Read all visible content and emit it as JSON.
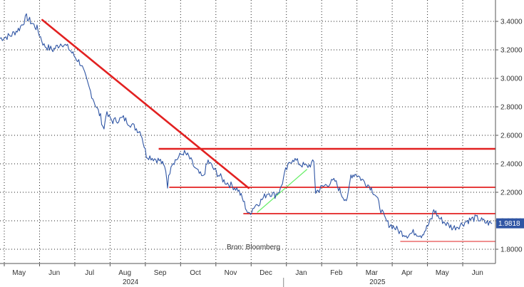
{
  "chart_data": {
    "type": "line",
    "title": "",
    "xlabel": "",
    "ylabel": "",
    "source": "Bron: Bloomberg",
    "ylim": [
      1.7,
      3.55
    ],
    "y_ticks": [
      "3.4000",
      "3.2000",
      "3.0000",
      "2.8000",
      "2.6000",
      "2.4000",
      "2.2000",
      "2.0000",
      "1.8000"
    ],
    "y_tick_values": [
      3.4,
      3.2,
      3.0,
      2.8,
      2.6,
      2.4,
      2.2,
      2.0,
      1.8
    ],
    "x_ticks": [
      "May",
      "Jun",
      "Jul",
      "Aug",
      "Sep",
      "Oct",
      "Nov",
      "Dec",
      "Jan",
      "Feb",
      "Mar",
      "Apr",
      "May",
      "Jun"
    ],
    "x_tick_positions": [
      0.5,
      1.5,
      2.5,
      3.5,
      4.5,
      5.5,
      6.5,
      7.5,
      8.5,
      9.5,
      10.5,
      11.5,
      12.5,
      13.5
    ],
    "year_labels": [
      "2024",
      "2025"
    ],
    "year_positions": [
      3.5,
      10.5
    ],
    "year_divider": 8.0,
    "x_range": [
      0,
      14.05
    ],
    "grid": true,
    "last_value": "1.9818",
    "series_color": "#2f55a4",
    "series": [
      {
        "name": "",
        "x": [
          0.0,
          0.3,
          0.55,
          0.75,
          0.9,
          1.05,
          1.25,
          1.5,
          1.75,
          1.95,
          2.1,
          2.3,
          2.5,
          2.7,
          2.85,
          2.95,
          3.0,
          3.2,
          3.5,
          3.8,
          4.0,
          4.15,
          4.35,
          4.55,
          4.7,
          4.75,
          4.85,
          5.0,
          5.2,
          5.35,
          5.55,
          5.75,
          5.9,
          6.1,
          6.35,
          6.55,
          6.75,
          6.9,
          7.05,
          7.2,
          7.4,
          7.6,
          7.8,
          7.95,
          8.1,
          8.3,
          8.5,
          8.7,
          8.9,
          8.95,
          9.1,
          9.3,
          9.5,
          9.7,
          9.85,
          9.95,
          10.1,
          10.3,
          10.5,
          10.65,
          10.8,
          10.9,
          11.0,
          11.15,
          11.35,
          11.55,
          11.75,
          11.95,
          12.1,
          12.25,
          12.3,
          12.45,
          12.65,
          12.85,
          13.05,
          13.25,
          13.5,
          13.75,
          13.95
        ],
        "y": [
          3.28,
          3.3,
          3.35,
          3.43,
          3.39,
          3.35,
          3.23,
          3.2,
          3.25,
          3.21,
          3.16,
          3.1,
          2.95,
          2.82,
          2.73,
          2.64,
          2.75,
          2.7,
          2.72,
          2.66,
          2.62,
          2.46,
          2.44,
          2.42,
          2.36,
          2.25,
          2.4,
          2.43,
          2.48,
          2.45,
          2.36,
          2.3,
          2.42,
          2.35,
          2.28,
          2.25,
          2.22,
          2.14,
          2.04,
          2.1,
          2.14,
          2.2,
          2.18,
          2.22,
          2.35,
          2.44,
          2.4,
          2.38,
          2.41,
          2.2,
          2.23,
          2.26,
          2.28,
          2.18,
          2.14,
          2.32,
          2.33,
          2.28,
          2.24,
          2.18,
          2.08,
          2.02,
          1.98,
          1.96,
          1.92,
          1.9,
          1.92,
          1.9,
          1.95,
          2.02,
          2.08,
          2.02,
          1.98,
          1.95,
          1.97,
          2.0,
          2.02,
          1.99,
          1.98
        ]
      }
    ],
    "annotations": [
      {
        "kind": "trendline",
        "color": "#e22121",
        "from": [
          1.2,
          3.41
        ],
        "to": [
          7.05,
          2.23
        ]
      },
      {
        "kind": "trendline",
        "color": "#66ee66",
        "from": [
          7.3,
          2.06
        ],
        "to": [
          8.7,
          2.36
        ]
      },
      {
        "kind": "hline",
        "color": "#e22121",
        "y": 2.505,
        "from_x": 4.5,
        "to_x": 14.05,
        "weight": "heavy"
      },
      {
        "kind": "hline",
        "color": "#e22121",
        "y": 2.235,
        "from_x": 4.8,
        "to_x": 14.05,
        "weight": "medium"
      },
      {
        "kind": "hline",
        "color": "#e22121",
        "y": 2.05,
        "from_x": 6.9,
        "to_x": 14.05,
        "weight": "medium"
      },
      {
        "kind": "hline",
        "color": "#e22121",
        "y": 1.855,
        "from_x": 11.35,
        "to_x": 14.05,
        "weight": "light"
      }
    ]
  }
}
